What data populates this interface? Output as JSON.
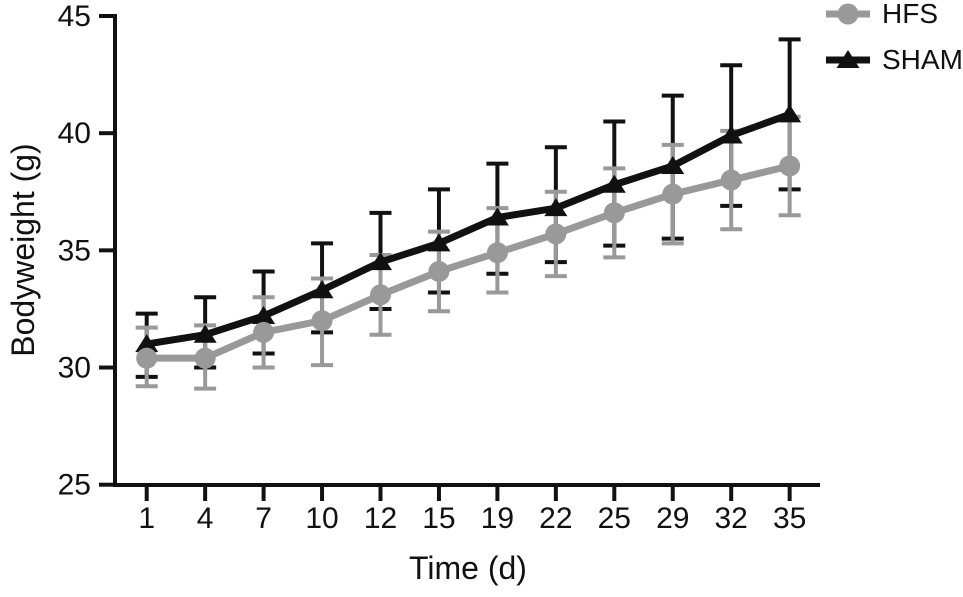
{
  "page": {
    "background": "#ffffff"
  },
  "legend": {
    "items": [
      {
        "label": "HFS",
        "marker": "circle",
        "color": "#999999"
      },
      {
        "label": "SHAM",
        "marker": "triangle",
        "color": "#111111"
      }
    ]
  },
  "chart_data": {
    "type": "line",
    "title": "",
    "xlabel": "Time (d)",
    "ylabel": "Bodyweight (g)",
    "x_tick_labels": [
      "1",
      "4",
      "7",
      "10",
      "12",
      "15",
      "19",
      "22",
      "25",
      "29",
      "32",
      "35"
    ],
    "x_values_days": [
      1,
      4,
      7,
      10,
      12,
      15,
      19,
      22,
      25,
      29,
      32,
      35
    ],
    "y_ticks": [
      25,
      30,
      35,
      40,
      45
    ],
    "ylim": [
      25,
      45
    ],
    "grid": false,
    "legend_position": "top-right",
    "axis_color": "#111111",
    "error_bars": "caps both directions",
    "series": [
      {
        "name": "SHAM",
        "color": "#111111",
        "marker": "triangle",
        "values": [
          31.0,
          31.4,
          32.2,
          33.3,
          34.5,
          35.3,
          36.4,
          36.8,
          37.8,
          38.6,
          39.9,
          40.8
        ],
        "upper": [
          32.3,
          33.0,
          34.1,
          35.3,
          36.6,
          37.6,
          38.7,
          39.4,
          40.5,
          41.6,
          42.9,
          44.0
        ],
        "lower": [
          29.6,
          30.0,
          30.6,
          31.5,
          32.5,
          33.2,
          34.0,
          34.5,
          35.2,
          35.5,
          36.9,
          37.6
        ]
      },
      {
        "name": "HFS",
        "color": "#999999",
        "marker": "circle",
        "values": [
          30.4,
          30.4,
          31.5,
          32.0,
          33.1,
          34.1,
          34.9,
          35.7,
          36.6,
          37.4,
          38.0,
          38.6
        ],
        "upper": [
          31.7,
          31.8,
          33.0,
          33.8,
          34.8,
          35.8,
          36.8,
          37.5,
          38.5,
          39.5,
          40.1,
          40.7
        ],
        "lower": [
          29.2,
          29.1,
          30.0,
          30.1,
          31.4,
          32.4,
          33.2,
          33.9,
          34.7,
          35.3,
          35.9,
          36.5
        ]
      }
    ]
  }
}
